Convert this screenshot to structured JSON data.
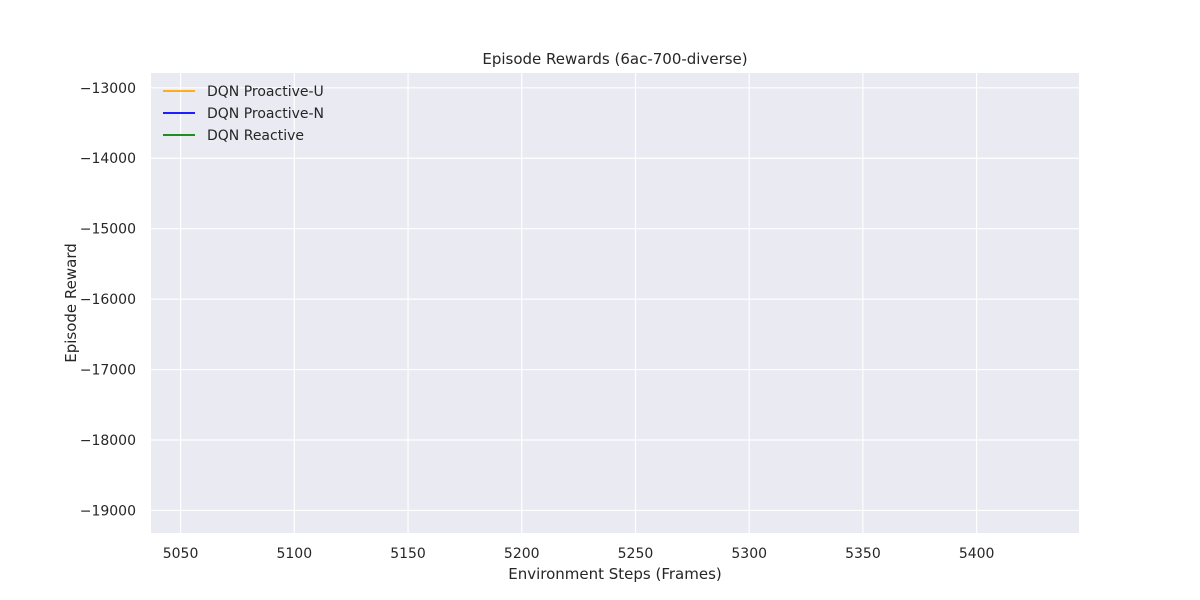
{
  "chart_data": {
    "type": "line",
    "title": "Episode Rewards (6ac-700-diverse)",
    "xlabel": "Environment Steps (Frames)",
    "ylabel": "Episode Reward",
    "xlim": [
      5037,
      5445
    ],
    "ylim": [
      -19320,
      -12790
    ],
    "xticks": [
      5050,
      5100,
      5150,
      5200,
      5250,
      5300,
      5350,
      5400
    ],
    "yticks": [
      -13000,
      -14000,
      -15000,
      -16000,
      -17000,
      -18000,
      -19000
    ],
    "xtick_labels": [
      "5050",
      "5100",
      "5150",
      "5200",
      "5250",
      "5300",
      "5350",
      "5400"
    ],
    "ytick_labels": [
      "−13000",
      "−14000",
      "−15000",
      "−16000",
      "−17000",
      "−18000",
      "−19000"
    ],
    "grid": true,
    "legend_position": "top-left",
    "series": [
      {
        "name": "DQN Proactive-U",
        "color": "#ffa500",
        "x": [],
        "y": []
      },
      {
        "name": "DQN Proactive-N",
        "color": "#0000ff",
        "x": [],
        "y": []
      },
      {
        "name": "DQN Reactive",
        "color": "#008000",
        "x": [],
        "y": []
      }
    ],
    "style": {
      "plot_background": "#eaeaf2",
      "grid_color": "#ffffff"
    }
  }
}
